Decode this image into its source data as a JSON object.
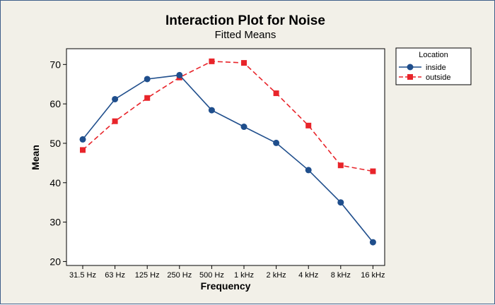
{
  "chart_data": {
    "type": "line",
    "title": "Interaction Plot for Noise",
    "subtitle": "Fitted Means",
    "xlabel": "Frequency",
    "ylabel": "Mean",
    "categories": [
      "31.5 Hz",
      "63 Hz",
      "125 Hz",
      "250 Hz",
      "500 Hz",
      "1 kHz",
      "2 kHz",
      "4 kHz",
      "8 kHz",
      "16 kHz"
    ],
    "ylim": [
      19,
      74
    ],
    "yticks": [
      20,
      30,
      40,
      50,
      60,
      70
    ],
    "grid": false,
    "legend": {
      "title": "Location",
      "placement": "right"
    },
    "series": [
      {
        "name": "inside",
        "color": "#1f4e8c",
        "marker": "circle",
        "line": "solid",
        "values": [
          51.0,
          61.2,
          66.3,
          67.3,
          58.4,
          54.2,
          50.1,
          43.2,
          35.0,
          24.9
        ]
      },
      {
        "name": "outside",
        "color": "#e8242a",
        "marker": "square",
        "line": "dashed",
        "values": [
          48.3,
          55.6,
          61.5,
          66.7,
          70.8,
          70.4,
          62.7,
          54.5,
          44.4,
          42.9
        ]
      }
    ]
  }
}
